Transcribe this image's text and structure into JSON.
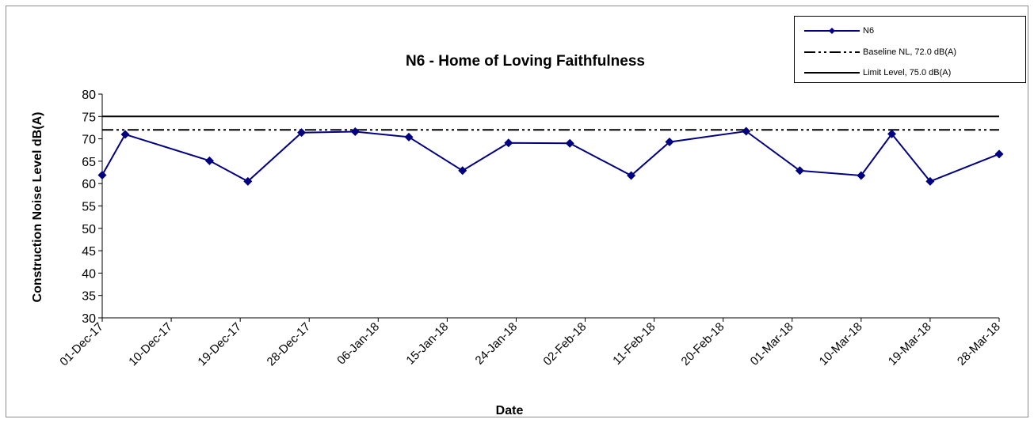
{
  "chart_data": {
    "type": "line",
    "title": "N6 - Home of Loving Faithfulness",
    "xlabel": "Date",
    "ylabel": "Construction Noise Level  dB(A)",
    "ylim": [
      30,
      80
    ],
    "yticks": [
      30,
      35,
      40,
      45,
      50,
      55,
      60,
      65,
      70,
      75,
      80
    ],
    "xlim": [
      "2017-12-01",
      "2018-03-28"
    ],
    "xtick_labels": [
      "01-Dec-17",
      "10-Dec-17",
      "19-Dec-17",
      "28-Dec-17",
      "06-Jan-18",
      "15-Jan-18",
      "24-Jan-18",
      "02-Feb-18",
      "11-Feb-18",
      "20-Feb-18",
      "01-Mar-18",
      "10-Mar-18",
      "19-Mar-18",
      "28-Mar-18"
    ],
    "grid": false,
    "legend_position": "top-right",
    "series": [
      {
        "name": "N6",
        "color": "#000080",
        "marker": "diamond",
        "points": [
          {
            "x": "2017-12-01",
            "y": 61.9
          },
          {
            "x": "2017-12-04",
            "y": 71.0
          },
          {
            "x": "2017-12-15",
            "y": 65.1
          },
          {
            "x": "2017-12-20",
            "y": 60.5
          },
          {
            "x": "2017-12-27",
            "y": 71.4
          },
          {
            "x": "2018-01-03",
            "y": 71.6
          },
          {
            "x": "2018-01-10",
            "y": 70.4
          },
          {
            "x": "2018-01-17",
            "y": 62.9
          },
          {
            "x": "2018-01-23",
            "y": 69.1
          },
          {
            "x": "2018-01-31",
            "y": 69.0
          },
          {
            "x": "2018-02-08",
            "y": 61.8
          },
          {
            "x": "2018-02-13",
            "y": 69.3
          },
          {
            "x": "2018-02-23",
            "y": 71.7
          },
          {
            "x": "2018-03-02",
            "y": 62.9
          },
          {
            "x": "2018-03-10",
            "y": 61.8
          },
          {
            "x": "2018-03-14",
            "y": 71.1
          },
          {
            "x": "2018-03-19",
            "y": 60.5
          },
          {
            "x": "2018-03-28",
            "y": 66.6
          }
        ]
      },
      {
        "name": "Baseline NL, 72.0 dB(A)",
        "color": "#000000",
        "style": "dash-dot-dot",
        "value": 72.0
      },
      {
        "name": "Limit Level,  75.0 dB(A)",
        "color": "#000000",
        "style": "solid",
        "value": 75.0
      }
    ]
  }
}
